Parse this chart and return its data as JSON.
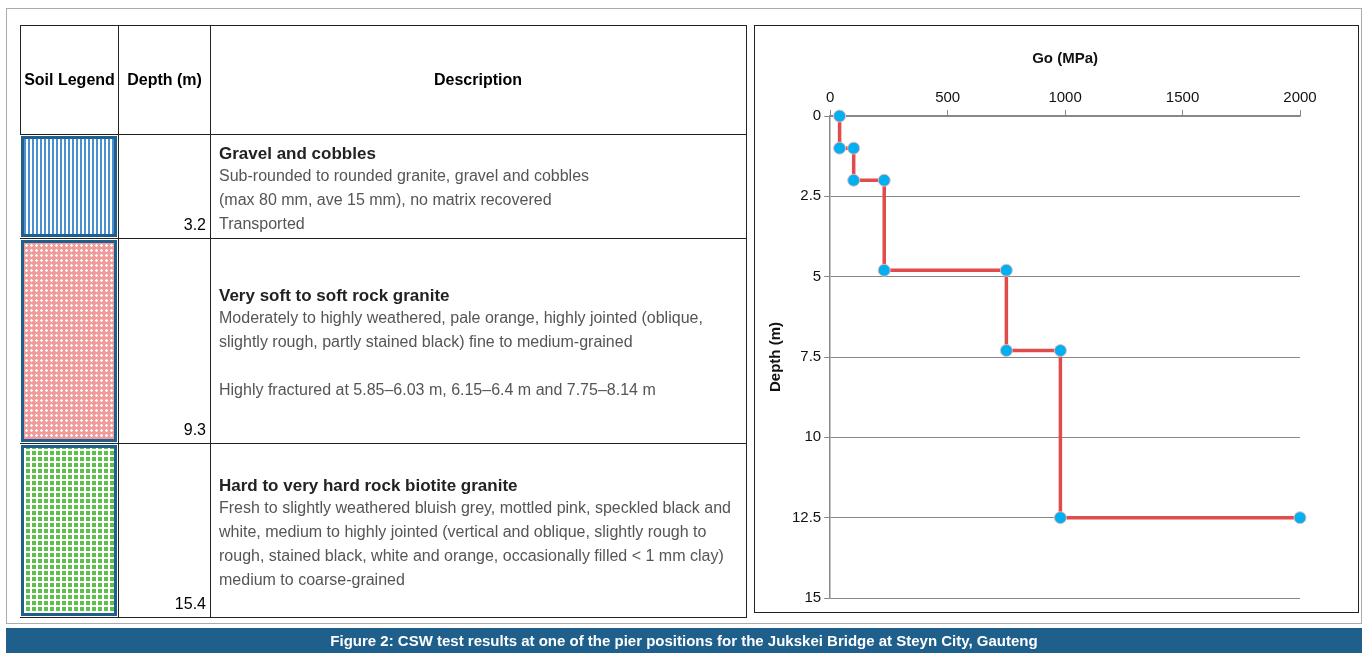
{
  "chart_data": [
    {
      "type": "other",
      "annotations": [
        "Soil Legend",
        "Depth (m)",
        "Description",
        "3.2",
        "Gravel and cobbles",
        "Sub-rounded to rounded granite, gravel and cobbles\n(max 80 mm, ave 15 mm), no matrix recovered\nTransported",
        "9.3",
        "Very soft to soft rock granite",
        "Moderately to highly weathered, pale orange, highly jointed (oblique, slightly rough, partly stained black) fine to medium-grained\n\nHighly fractured at 5.85–6.03 m, 6.15–6.4 m and 7.75–8.14 m",
        "15.4",
        "Hard to very hard rock biotite granite",
        "Fresh to slightly weathered bluish grey, mottled pink, speckled black and white, medium to highly jointed (vertical and oblique, slightly rough to rough, stained black, white and orange, occasionally filled < 1 mm clay)\nmedium to coarse-grained"
      ]
    },
    {
      "type": "line",
      "xlabel": "Go (MPa)",
      "ylabel": "Depth (m)",
      "xlim": [
        0,
        2000
      ],
      "xticks": [
        0,
        500,
        1000,
        1500,
        2000
      ],
      "ylim": [
        15,
        0
      ],
      "yticks": [
        0,
        2.5,
        5,
        7.5,
        10,
        12.5,
        15
      ],
      "grid": "y",
      "marker": "circle",
      "annotations": [
        "Figure 2: CSW test results at one of the pier positions for the Jukskei Bridge at Steyn City, Gauteng"
      ],
      "series": [
        {
          "color": "#e04b4b",
          "x": [
            40,
            40,
            100,
            100,
            230,
            230,
            750,
            750,
            980,
            980,
            2000
          ],
          "values": [
            0,
            1,
            1,
            2,
            2,
            4.8,
            4.8,
            7.3,
            7.3,
            12.5,
            12.5
          ]
        }
      ]
    }
  ]
}
